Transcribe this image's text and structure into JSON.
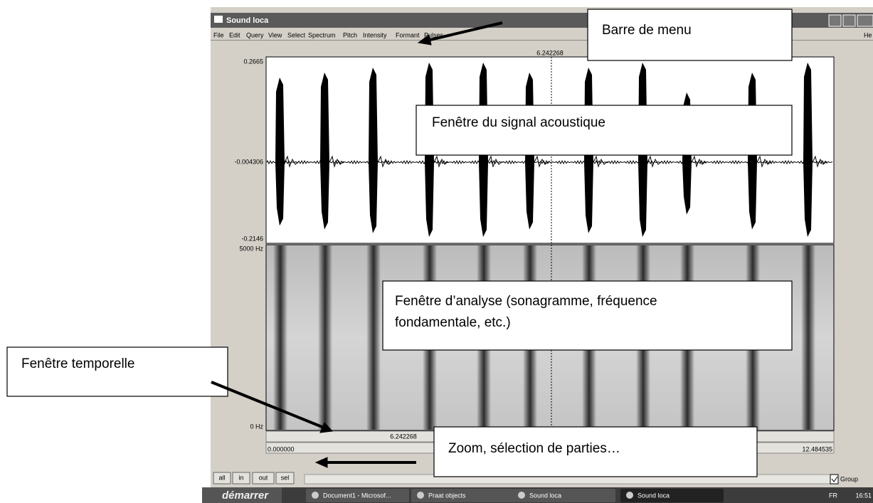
{
  "window": {
    "title": "Sound loca",
    "menu": [
      "File",
      "Edit",
      "Query",
      "View",
      "Select",
      "Spectrum",
      "Pitch",
      "Intensity",
      "Formant",
      "Pulses"
    ],
    "help": "He",
    "cursor_time": "6.242268",
    "waveform_labels": [
      "0.2665",
      "-0.004306",
      "-0.2146"
    ],
    "spectrogram_labels": [
      "5000 Hz",
      "0 Hz"
    ],
    "time": {
      "cursor": "6.242268",
      "start": "0.000000",
      "end": "12.484535"
    },
    "buttons": [
      "all",
      "in",
      "out",
      "sel"
    ],
    "group": "Group"
  },
  "taskbar": {
    "start": "démarrer",
    "tasks": [
      "Document1 - Microsof...",
      "Praat objects",
      "Sound loca",
      "Sound loca"
    ],
    "lang": "FR",
    "clock": "16:51"
  },
  "annotations": {
    "menu": "Barre de menu",
    "signal": "Fenêtre du signal acoustique",
    "analysis": [
      "Fenêtre d’analyse (sonagramme, fréquence",
      "fondamentale, etc.)"
    ],
    "time": "Fenêtre temporelle",
    "zoom": "Zoom, sélection de parties…"
  }
}
